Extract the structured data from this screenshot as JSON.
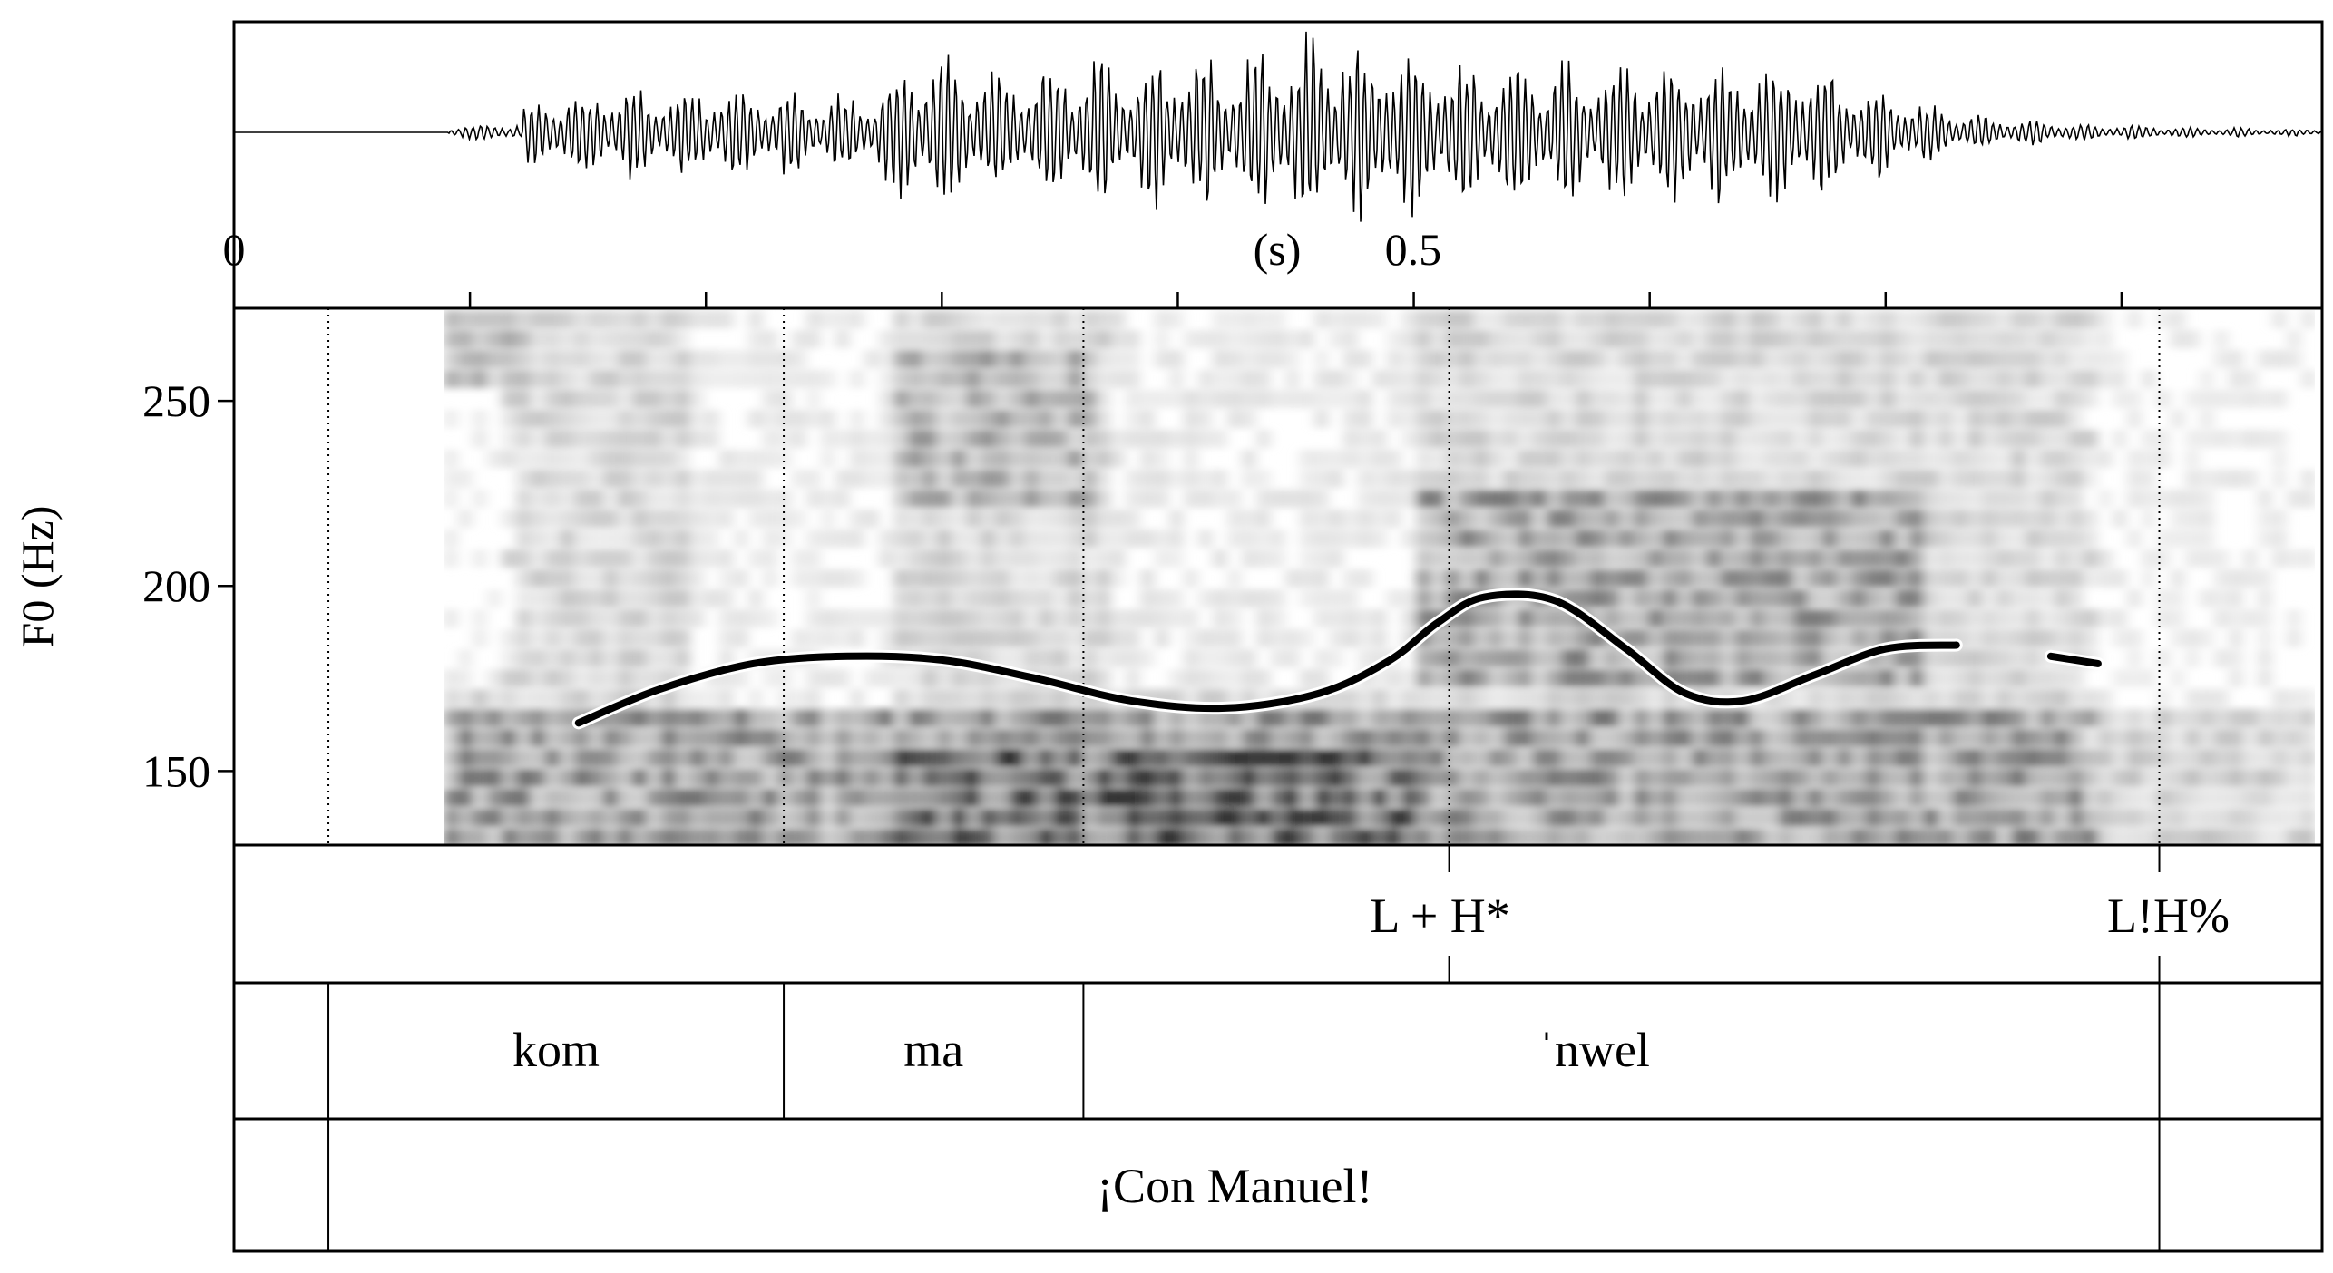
{
  "colors": {
    "ink": "#000000",
    "paper": "#ffffff"
  },
  "axis": {
    "time_label": "(s)",
    "time_ticks": [
      {
        "t": 0,
        "label": "0"
      },
      {
        "t": 0.5,
        "label": "0.5"
      }
    ],
    "time_range": [
      0,
      0.885
    ],
    "f0_label": "F0 (Hz)",
    "f0_range": [
      130,
      275
    ],
    "f0_ticks": [
      {
        "hz": 250,
        "label": "250"
      },
      {
        "hz": 200,
        "label": "200"
      },
      {
        "hz": 150,
        "label": "150"
      }
    ]
  },
  "chart_data": {
    "type": "line",
    "xlabel": "(s)",
    "ylabel": "F0 (Hz)",
    "xlim": [
      0,
      0.885
    ],
    "ylim": [
      130,
      275
    ],
    "series": [
      {
        "t": [
          0.146,
          0.18,
          0.22,
          0.26,
          0.3,
          0.34,
          0.38,
          0.42,
          0.46,
          0.49,
          0.51,
          0.53,
          0.56,
          0.59,
          0.615,
          0.64,
          0.67,
          0.7,
          0.73,
          0.77,
          0.79
        ],
        "hz": [
          163,
          172,
          179,
          181,
          180,
          175,
          169,
          167,
          171,
          180,
          190,
          197,
          196,
          183,
          171,
          169,
          176,
          183,
          184,
          181,
          179
        ]
      }
    ]
  },
  "tiers": {
    "tones": [
      {
        "t": 0.515,
        "label": "L + H*"
      },
      {
        "t": 0.816,
        "label": "L!H%"
      }
    ],
    "syllables": {
      "boundaries": [
        0.04,
        0.233,
        0.36,
        0.816
      ],
      "labels": [
        {
          "from": 0.04,
          "to": 0.233,
          "label": "kom"
        },
        {
          "from": 0.233,
          "to": 0.36,
          "label": "ma"
        },
        {
          "from": 0.36,
          "to": 0.816,
          "label": "ˈnwel"
        }
      ]
    },
    "words": {
      "boundaries": [
        0.04,
        0.816
      ],
      "labels": [
        {
          "from": 0.04,
          "to": 0.816,
          "label": "¡Con Manuel!"
        }
      ]
    }
  }
}
